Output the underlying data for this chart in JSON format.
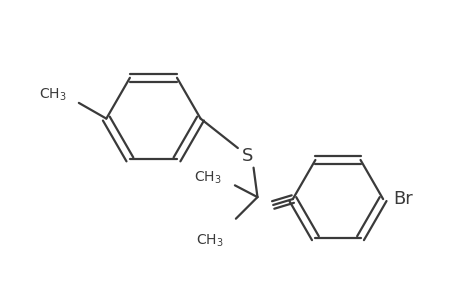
{
  "bg_color": "#ffffff",
  "line_color": "#3a3a3a",
  "line_width": 1.6,
  "figsize": [
    4.6,
    3.0
  ],
  "dpi": 100
}
